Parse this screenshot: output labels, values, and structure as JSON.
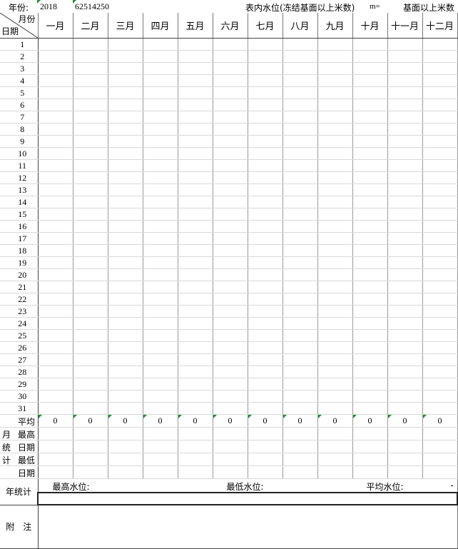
{
  "header": {
    "year_label": "年份:",
    "year_value": "2018",
    "station_code": "62514250",
    "note": "表内水位(冻结基面以上米数)",
    "m_label": "m=",
    "right_note": "基面以上米数"
  },
  "table": {
    "month_label": "月份",
    "day_label": "日期",
    "months": [
      "一月",
      "二月",
      "三月",
      "四月",
      "五月",
      "六月",
      "七月",
      "八月",
      "九月",
      "十月",
      "十一月",
      "十二月"
    ],
    "days": [
      "1",
      "2",
      "3",
      "4",
      "5",
      "6",
      "7",
      "8",
      "9",
      "10",
      "11",
      "12",
      "13",
      "14",
      "15",
      "16",
      "17",
      "18",
      "19",
      "20",
      "21",
      "22",
      "23",
      "24",
      "25",
      "26",
      "27",
      "28",
      "29",
      "30",
      "31"
    ],
    "monthly_stats": {
      "group_label": [
        "月",
        "统",
        "计"
      ],
      "rows": [
        "平均",
        "最高",
        "日期",
        "最低",
        "日期"
      ],
      "averages": [
        "0",
        "0",
        "0",
        "0",
        "0",
        "0",
        "0",
        "0",
        "0",
        "0",
        "0",
        "0"
      ]
    },
    "yearly": {
      "label": "年统计",
      "max_label": "最高水位:",
      "min_label": "最低水位:",
      "avg_label": "平均水位:",
      "avg_value": "-"
    },
    "remarks": {
      "label": "附　注"
    }
  }
}
